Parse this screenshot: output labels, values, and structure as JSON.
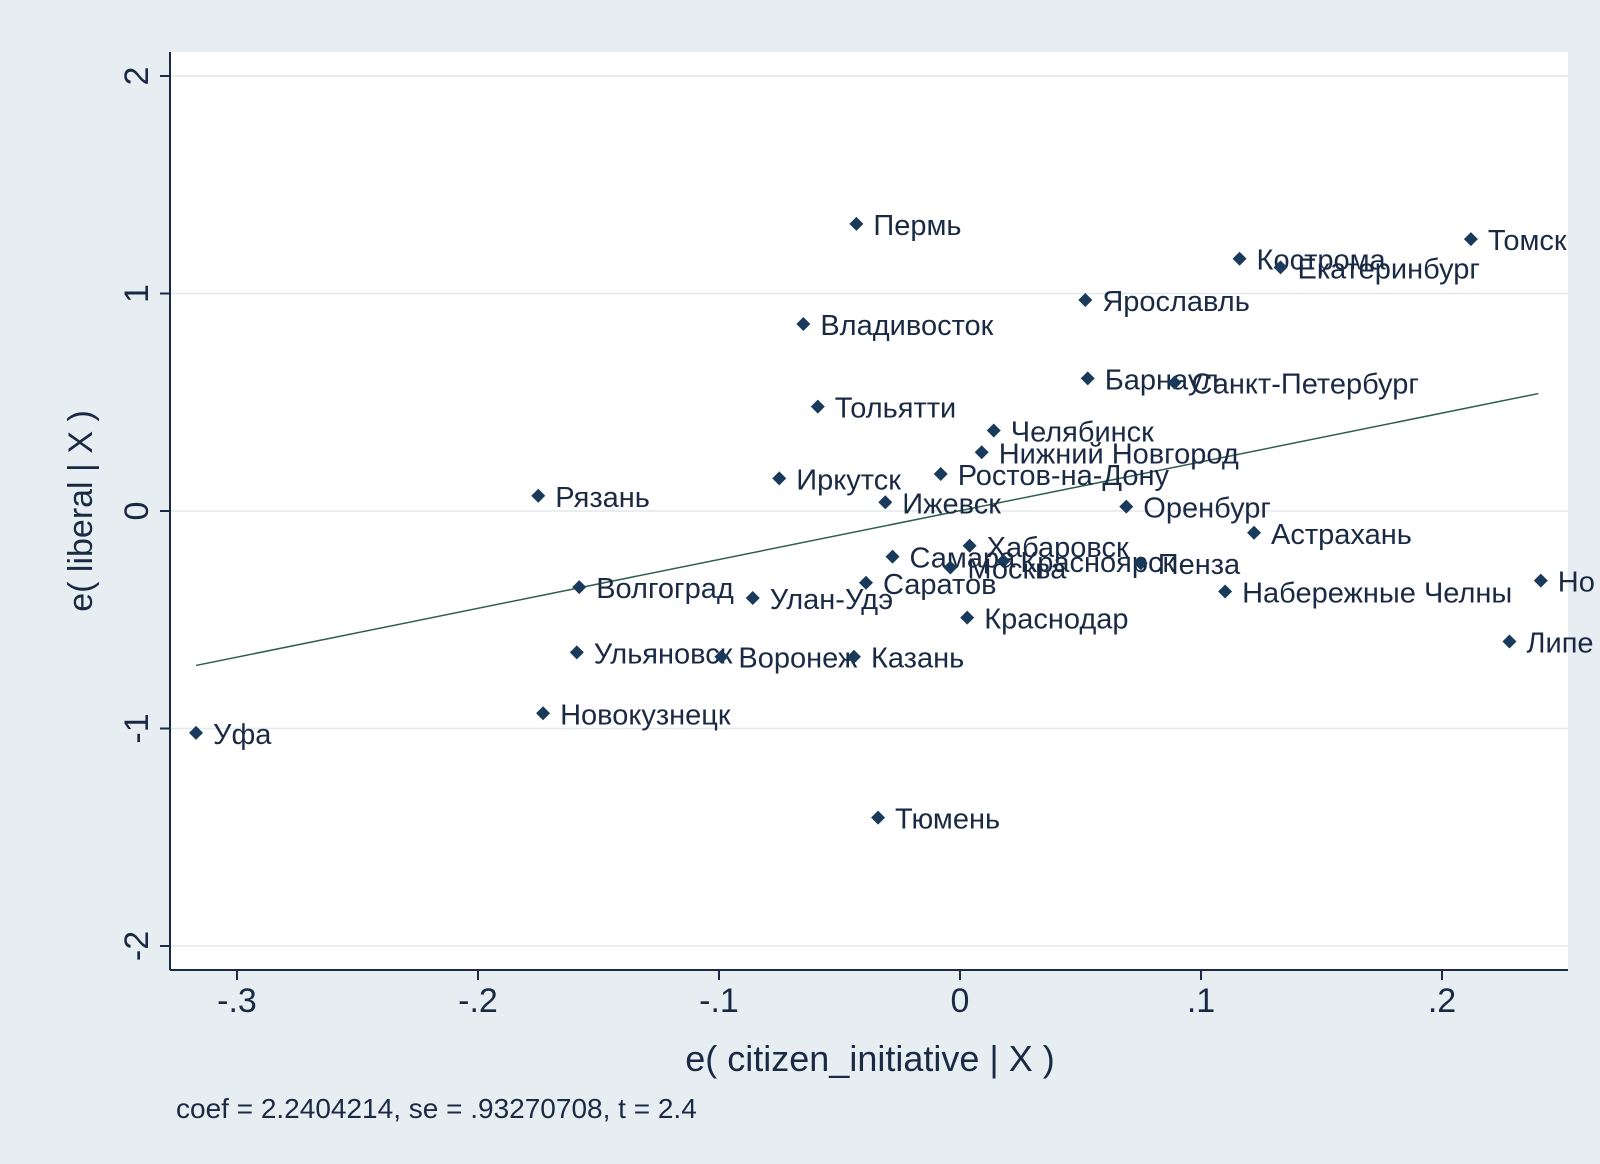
{
  "chart_data": {
    "type": "scatter",
    "title": "",
    "xlabel": "e( citizen_initiative | X )",
    "ylabel": "e( liberal | X )",
    "xlim": [
      -0.327,
      0.25
    ],
    "ylim": [
      -2.12,
      2.12
    ],
    "x_ticks": [
      {
        "value": -0.3,
        "label": "-.3"
      },
      {
        "value": -0.2,
        "label": "-.2"
      },
      {
        "value": -0.1,
        "label": "-.1"
      },
      {
        "value": 0,
        "label": "0"
      },
      {
        "value": 0.1,
        "label": ".1"
      },
      {
        "value": 0.2,
        "label": ".2"
      }
    ],
    "y_ticks": [
      {
        "value": -2,
        "label": "-2"
      },
      {
        "value": -1,
        "label": "-1"
      },
      {
        "value": 0,
        "label": "0"
      },
      {
        "value": 1,
        "label": "1"
      },
      {
        "value": 2,
        "label": "2"
      }
    ],
    "grid": "horizontal",
    "note": "coef = 2.2404214, se = .93270708, t = 2.4",
    "fit_line": {
      "x": [
        -0.317,
        0.24
      ],
      "y": [
        -0.71,
        0.54
      ]
    },
    "colors": {
      "background": "#e7eef2",
      "plot": "#ffffff",
      "marker": "#1a3a5c",
      "line": "#2e5e4e",
      "grid": "#e3e8ec",
      "text": "#1a2a44"
    },
    "points": [
      {
        "label": "Пермь",
        "x": -0.043,
        "y": 1.32
      },
      {
        "label": "Томск",
        "x": 0.212,
        "y": 1.25
      },
      {
        "label": "Кострома",
        "x": 0.116,
        "y": 1.16
      },
      {
        "label": "Екатеринбург",
        "x": 0.133,
        "y": 1.12
      },
      {
        "label": "Ярославль",
        "x": 0.052,
        "y": 0.97
      },
      {
        "label": "Владивосток",
        "x": -0.065,
        "y": 0.86
      },
      {
        "label": "Барнаул",
        "x": 0.053,
        "y": 0.61
      },
      {
        "label": "Санкт-Петербург",
        "x": 0.089,
        "y": 0.59
      },
      {
        "label": "Тольятти",
        "x": -0.059,
        "y": 0.48
      },
      {
        "label": "Челябинск",
        "x": 0.014,
        "y": 0.37
      },
      {
        "label": "Нижний Новгород",
        "x": 0.009,
        "y": 0.27
      },
      {
        "label": "Ростов-на-Дону",
        "x": -0.008,
        "y": 0.17
      },
      {
        "label": "Иркутск",
        "x": -0.075,
        "y": 0.15
      },
      {
        "label": "Рязань",
        "x": -0.175,
        "y": 0.07
      },
      {
        "label": "Ижевск",
        "x": -0.031,
        "y": 0.04
      },
      {
        "label": "Оренбург",
        "x": 0.069,
        "y": 0.02
      },
      {
        "label": "Астрахань",
        "x": 0.122,
        "y": -0.1
      },
      {
        "label": "Хабаровск",
        "x": 0.004,
        "y": -0.16
      },
      {
        "label": "Самара",
        "x": -0.028,
        "y": -0.21
      },
      {
        "label": "Красноярск",
        "x": 0.018,
        "y": -0.23
      },
      {
        "label": "Москва",
        "x": -0.004,
        "y": -0.26
      },
      {
        "label": "Пенза",
        "x": 0.075,
        "y": -0.24
      },
      {
        "label": "Саратов",
        "x": -0.039,
        "y": -0.33
      },
      {
        "label": "Волгоград",
        "x": -0.158,
        "y": -0.35
      },
      {
        "label": "Набережные Челны",
        "x": 0.11,
        "y": -0.37
      },
      {
        "label": "Улан-Удэ",
        "x": -0.086,
        "y": -0.4
      },
      {
        "label": "Но",
        "x": 0.241,
        "y": -0.32
      },
      {
        "label": "Краснодар",
        "x": 0.003,
        "y": -0.49
      },
      {
        "label": "Липе",
        "x": 0.228,
        "y": -0.6
      },
      {
        "label": "Ульяновск",
        "x": -0.159,
        "y": -0.65
      },
      {
        "label": "Воронеж",
        "x": -0.099,
        "y": -0.67
      },
      {
        "label": "Казань",
        "x": -0.044,
        "y": -0.67
      },
      {
        "label": "Новокузнецк",
        "x": -0.173,
        "y": -0.93
      },
      {
        "label": "Уфа",
        "x": -0.317,
        "y": -1.02
      },
      {
        "label": "Тюмень",
        "x": -0.034,
        "y": -1.41
      }
    ]
  }
}
